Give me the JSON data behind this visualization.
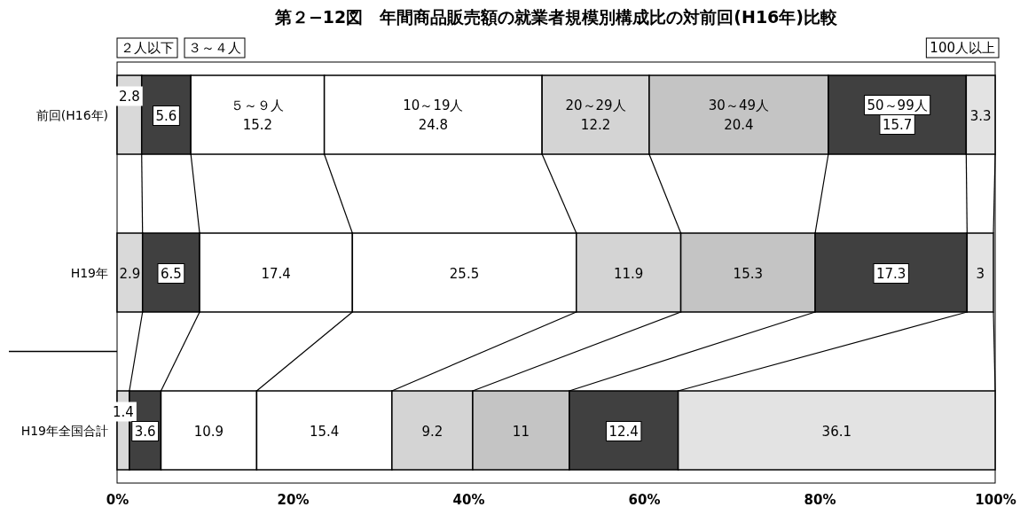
{
  "chart_data": {
    "type": "bar",
    "orientation": "horizontal",
    "stacked": true,
    "title": "第２−12図　年間商品販売額の就業者規模別構成比の対前回(H16年)比較",
    "categories": [
      "前回(H16年)",
      "H19年",
      "H19年全国合計"
    ],
    "series": [
      {
        "name": "２人以下",
        "color": "#d9d9d9",
        "values": [
          2.8,
          2.9,
          1.4
        ]
      },
      {
        "name": "３～４人",
        "color": "#404040",
        "values": [
          5.6,
          6.5,
          3.6
        ]
      },
      {
        "name": "５～９人",
        "color": "#ffffff",
        "values": [
          15.2,
          17.4,
          10.9
        ]
      },
      {
        "name": "10～19人",
        "color": "#ffffff",
        "values": [
          24.8,
          25.5,
          15.4
        ]
      },
      {
        "name": "20～29人",
        "color": "#d4d4d4",
        "values": [
          12.2,
          11.9,
          9.2
        ]
      },
      {
        "name": "30～49人",
        "color": "#c4c4c4",
        "values": [
          20.4,
          15.3,
          11.0
        ]
      },
      {
        "name": "50～99人",
        "color": "#404040",
        "values": [
          15.7,
          17.3,
          12.4
        ]
      },
      {
        "name": "100人以上",
        "color": "#e3e3e3",
        "values": [
          3.3,
          3.0,
          36.1
        ]
      }
    ],
    "xlim": [
      0,
      100
    ],
    "xticks": [
      {
        "value": 0,
        "label": "0%"
      },
      {
        "value": 20,
        "label": "20%"
      },
      {
        "value": 40,
        "label": "40%"
      },
      {
        "value": 60,
        "label": "60%"
      },
      {
        "value": 80,
        "label": "80%"
      },
      {
        "value": 100,
        "label": "100%"
      }
    ],
    "data_labels": true,
    "legend": "top",
    "grid": false
  }
}
